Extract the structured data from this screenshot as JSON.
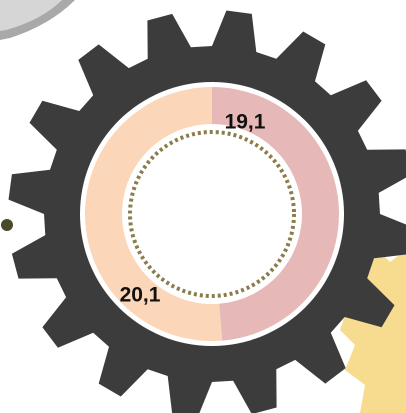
{
  "chart_data": {
    "type": "donut",
    "categories": [
      null,
      null
    ],
    "values": [
      19.1,
      20.1
    ],
    "value_labels": [
      "19,1",
      "20,1"
    ],
    "colors": [
      "#e6b9b8",
      "#fbd6b8"
    ]
  }
}
